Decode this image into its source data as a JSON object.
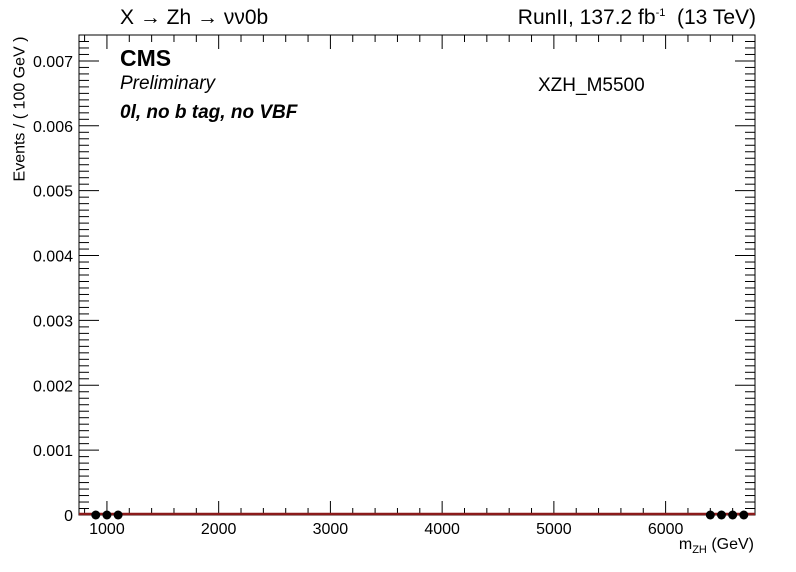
{
  "header": {
    "title_left": "X → Zh → νν0b",
    "lumi_prefix": "RunII, 137.2 fb",
    "lumi_exp": "-1",
    "lumi_suffix": "  (13 TeV)"
  },
  "labels": {
    "experiment": "CMS",
    "status": "Preliminary",
    "category": "0l, no b tag, no VBF",
    "sample": "XZH_M5500"
  },
  "axes": {
    "xlabel_main": "m",
    "xlabel_sub": "ZH",
    "xlabel_unit": " (GeV)",
    "ylabel": "Events / ( 100 GeV )"
  },
  "colors": {
    "curve": "#8b1a1a",
    "points": "#000000"
  },
  "chart_data": {
    "type": "scatter",
    "xlabel": "m_ZH (GeV)",
    "ylabel": "Events / ( 100 GeV )",
    "xlim": [
      750,
      6800
    ],
    "ylim": [
      0,
      0.0074
    ],
    "x_ticks": [
      1000,
      2000,
      3000,
      4000,
      5000,
      6000
    ],
    "x_tick_labels": [
      "1000",
      "2000",
      "3000",
      "4000",
      "5000",
      "6000"
    ],
    "y_ticks": [
      0,
      0.001,
      0.002,
      0.003,
      0.004,
      0.005,
      0.006,
      0.007
    ],
    "y_tick_labels": [
      "0",
      "0.001",
      "0.002",
      "0.003",
      "0.004",
      "0.005",
      "0.006",
      "0.007"
    ],
    "series": [
      {
        "kind": "points",
        "x": [
          900,
          1000,
          1100,
          6400,
          6500,
          6600,
          6700
        ],
        "y": [
          0,
          0,
          0,
          0,
          0,
          0,
          0
        ]
      },
      {
        "kind": "line",
        "x": [
          750,
          6800
        ],
        "y": [
          0,
          0
        ]
      }
    ]
  }
}
